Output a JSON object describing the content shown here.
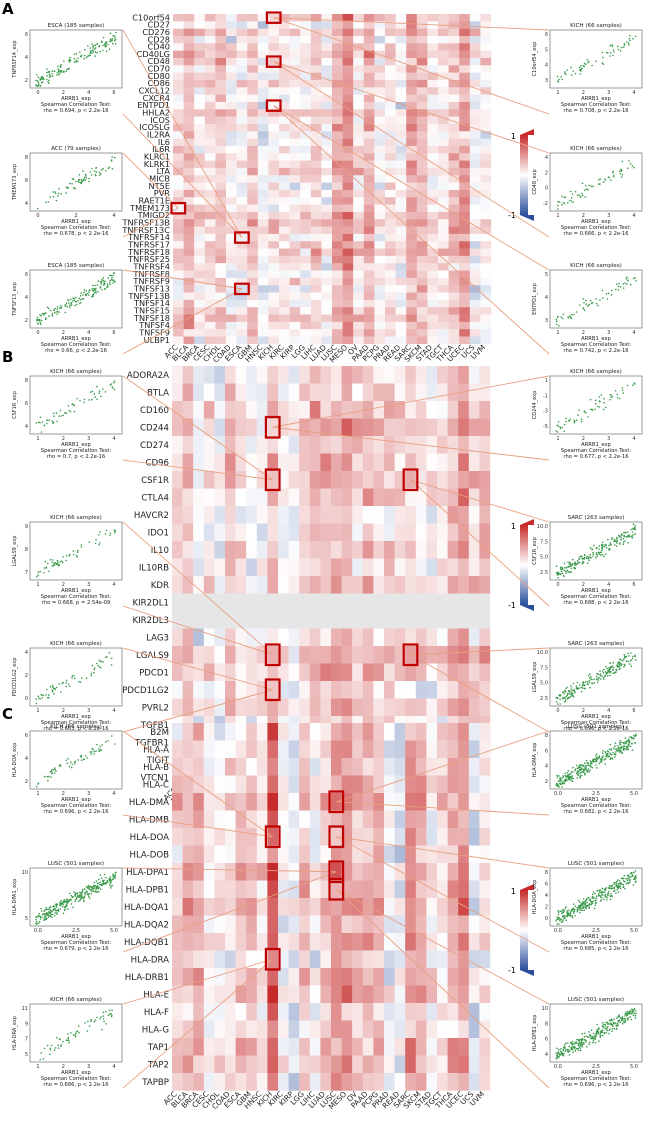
{
  "cancers": [
    "ACC",
    "BLCA",
    "BRCA",
    "CESC",
    "CHOL",
    "COAD",
    "ESCA",
    "GBM",
    "HNSC",
    "KICH",
    "KIRC",
    "KIRP",
    "LGG",
    "LIHC",
    "LUAD",
    "LUSC",
    "MESO",
    "OV",
    "PAAD",
    "PCPG",
    "PRAD",
    "READ",
    "SARC",
    "SKCM",
    "STAD",
    "TGCT",
    "THCA",
    "UCEC",
    "UCS",
    "UVM"
  ],
  "scale": {
    "max": "1",
    "min": "-1",
    "high_color": "#c62a2a",
    "low_color": "#2b4f9c",
    "mid_color": "#ffffff"
  },
  "scatter_style": {
    "dot_color": "#3a9a4a",
    "connector_color": "#e8a080",
    "highlight_color": "#c00000"
  },
  "x_label": "ARRB1_exp",
  "test_label": "Spearman Correlation Test:",
  "panels": [
    {
      "label": "A",
      "genes": [
        "C10orf54",
        "CD27",
        "CD276",
        "CD28",
        "CD40",
        "CD40LG",
        "CD48",
        "CD70",
        "CD80",
        "CD86",
        "CXCL12",
        "CXCR4",
        "ENTPD1",
        "HHLA2",
        "ICOS",
        "ICOSLG",
        "IL2RA",
        "IL6",
        "IL6R",
        "KLRC1",
        "KLRK1",
        "LTA",
        "MICB",
        "NT5E",
        "PVR",
        "RAET1E",
        "TMEM173",
        "TMIGD2",
        "TNFRSF13B",
        "TNFRSF13C",
        "TNFRSF14",
        "TNFRSF17",
        "TNFRSF18",
        "TNFRSF25",
        "TNFRSF4",
        "TNFRSF8",
        "TNFRSF9",
        "TNFSF13",
        "TNFSF13B",
        "TNFSF14",
        "TNFSF15",
        "TNFSF18",
        "TNFSF4",
        "TNFSF9",
        "ULBP1"
      ],
      "highlights": [
        {
          "gene": "C10orf54",
          "cancer": "KICH"
        },
        {
          "gene": "CD48",
          "cancer": "KICH"
        },
        {
          "gene": "ENTPD1",
          "cancer": "KICH"
        },
        {
          "gene": "TMEM173",
          "cancer": "ACC"
        },
        {
          "gene": "TNFRSF14",
          "cancer": "ESCA"
        },
        {
          "gene": "TNFSF13",
          "cancer": "ESCA"
        }
      ],
      "scatters": [
        {
          "side": "left",
          "slot": 0,
          "title": "ESCA (185 samples)",
          "ylabel": "TNFRSF14_exp",
          "stat": "rho = 0.694, p < 2.2e-16",
          "n": 150,
          "xticks": [
            "0",
            "2",
            "4",
            "6"
          ],
          "yticks": [
            "2",
            "4",
            "6"
          ]
        },
        {
          "side": "left",
          "slot": 1,
          "title": "ACC (79 samples)",
          "ylabel": "TMEM173_exp",
          "stat": "rho = 0.678, p < 2.2e-16",
          "n": 70,
          "xticks": [
            "0",
            "2",
            "4"
          ],
          "yticks": [
            "4",
            "6",
            "8"
          ]
        },
        {
          "side": "left",
          "slot": 2,
          "title": "ESCA (185 samples)",
          "ylabel": "TNFSF13_exp",
          "stat": "rho = 0.66, p < 2.2e-16",
          "n": 150,
          "xticks": [
            "0",
            "2",
            "4",
            "6"
          ],
          "yticks": [
            "2",
            "4",
            "6"
          ]
        },
        {
          "side": "right",
          "slot": 0,
          "title": "KICH (66 samples)",
          "ylabel": "C10orf54_exp",
          "stat": "rho = 0.708, p < 2.2e-16",
          "n": 60,
          "xticks": [
            "1",
            "2",
            "3",
            "4"
          ],
          "yticks": [
            "3",
            "4",
            "5",
            "6"
          ]
        },
        {
          "side": "right",
          "slot": 1,
          "title": "KICH (66 samples)",
          "ylabel": "CD48_exp",
          "stat": "rho = 0.666, p < 2.2e-16",
          "n": 60,
          "xticks": [
            "1",
            "2",
            "3",
            "4"
          ],
          "yticks": [
            "-2",
            "0",
            "2",
            "4"
          ]
        },
        {
          "side": "right",
          "slot": 2,
          "title": "KICH (66 samples)",
          "ylabel": "ENTPD1_exp",
          "stat": "rho = 0.742, p < 2.2e-16",
          "n": 60,
          "xticks": [
            "1",
            "2",
            "3",
            "4"
          ],
          "yticks": [
            "3",
            "4",
            "5"
          ]
        }
      ]
    },
    {
      "label": "B",
      "genes": [
        "ADORA2A",
        "BTLA",
        "CD160",
        "CD244",
        "CD274",
        "CD96",
        "CSF1R",
        "CTLA4",
        "HAVCR2",
        "IDO1",
        "IL10",
        "IL10RB",
        "KDR",
        "KIR2DL1",
        "KIR2DL3",
        "LAG3",
        "LGALS9",
        "PDCD1",
        "PDCD1LG2",
        "PVRL2",
        "TGFB1",
        "TGFBR1",
        "TIGIT",
        "VTCN1"
      ],
      "highlights": [
        {
          "gene": "CD244",
          "cancer": "KICH"
        },
        {
          "gene": "CSF1R",
          "cancer": "KICH"
        },
        {
          "gene": "CSF1R",
          "cancer": "SARC"
        },
        {
          "gene": "LGALS9",
          "cancer": "KICH"
        },
        {
          "gene": "LGALS9",
          "cancer": "SARC"
        },
        {
          "gene": "PDCD1LG2",
          "cancer": "KICH"
        }
      ],
      "scatters": [
        {
          "side": "left",
          "slot": 0,
          "title": "KICH (66 samples)",
          "ylabel": "CSF1R_exp",
          "stat": "rho = 0.7, p < 2.2e-16",
          "n": 60,
          "xticks": [
            "1",
            "2",
            "3",
            "4"
          ],
          "yticks": [
            "4",
            "6",
            "8"
          ]
        },
        {
          "side": "left",
          "slot": 1,
          "title": "KICH (66 samples)",
          "ylabel": "LGALS9_exp",
          "stat": "rho = 0.668, p = 2.54e-09",
          "n": 60,
          "xticks": [
            "1",
            "2",
            "3",
            "4"
          ],
          "yticks": [
            "7",
            "8",
            "9"
          ]
        },
        {
          "side": "left",
          "slot": 2,
          "title": "KICH (66 samples)",
          "ylabel": "PDCD1LG2_exp",
          "stat": "rho = 0.683, p < 2.2e-16",
          "n": 60,
          "xticks": [
            "1",
            "2",
            "3",
            "4"
          ],
          "yticks": [
            "0",
            "2",
            "4"
          ]
        },
        {
          "side": "right",
          "slot": 0,
          "title": "KICH (66 samples)",
          "ylabel": "CD244_exp",
          "stat": "rho = 0.677, p < 2.2e-16",
          "n": 60,
          "xticks": [
            "1",
            "2",
            "3",
            "4"
          ],
          "yticks": [
            "-5",
            "-3",
            "-1",
            "1"
          ]
        },
        {
          "side": "right",
          "slot": 1,
          "title": "SARC (263 samples)",
          "ylabel": "CSF1R_exp",
          "stat": "rho = 0.688, p < 2.2e-16",
          "n": 200,
          "xticks": [
            "0",
            "2",
            "4",
            "6"
          ],
          "yticks": [
            "2.5",
            "5.0",
            "7.5",
            "10.0"
          ]
        },
        {
          "side": "right",
          "slot": 2,
          "title": "SARC (263 samples)",
          "ylabel": "LGALS9_exp",
          "stat": "rho = 0.696, p < 2.2e-16",
          "n": 200,
          "xticks": [
            "0",
            "2",
            "4",
            "6"
          ],
          "yticks": [
            "2.5",
            "5.0",
            "7.5",
            "10.0"
          ]
        }
      ]
    },
    {
      "label": "C",
      "genes": [
        "B2M",
        "HLA-A",
        "HLA-B",
        "HLA-C",
        "HLA-DMA",
        "HLA-DMB",
        "HLA-DOA",
        "HLA-DOB",
        "HLA-DPA1",
        "HLA-DPB1",
        "HLA-DQA1",
        "HLA-DQA2",
        "HLA-DQB1",
        "HLA-DRA",
        "HLA-DRB1",
        "HLA-E",
        "HLA-F",
        "HLA-G",
        "TAP1",
        "TAP2",
        "TAPBP"
      ],
      "highlights": [
        {
          "gene": "HLA-DOA",
          "cancer": "KICH"
        },
        {
          "gene": "HLA-DRA",
          "cancer": "KICH"
        },
        {
          "gene": "HLA-DMA",
          "cancer": "LUSC"
        },
        {
          "gene": "HLA-DOA",
          "cancer": "LUSC"
        },
        {
          "gene": "HLA-DPA1",
          "cancer": "LUSC"
        },
        {
          "gene": "HLA-DPB1",
          "cancer": "LUSC"
        }
      ],
      "scatters": [
        {
          "side": "left",
          "slot": 0,
          "title": "KICH (66 samples)",
          "ylabel": "HLA-DOA_exp",
          "stat": "rho = 0.696, p < 2.2e-16",
          "n": 60,
          "xticks": [
            "1",
            "2",
            "3",
            "4"
          ],
          "yticks": [
            "2",
            "4",
            "6"
          ]
        },
        {
          "side": "left",
          "slot": 1,
          "title": "LUSC (501 samples)",
          "ylabel": "HLA-DPA1_exp",
          "stat": "rho = 0.679, p < 2.2e-16",
          "n": 300,
          "xticks": [
            "0.0",
            "2.5",
            "5.0"
          ],
          "yticks": [
            "5",
            "10"
          ]
        },
        {
          "side": "left",
          "slot": 2,
          "title": "KICH (66 samples)",
          "ylabel": "HLA-DRA_exp",
          "stat": "rho = 0.686, p < 2.2e-16",
          "n": 60,
          "xticks": [
            "1",
            "2",
            "3",
            "4"
          ],
          "yticks": [
            "5",
            "7",
            "9",
            "11"
          ]
        },
        {
          "side": "right",
          "slot": 0,
          "title": "LUSC (501 samples)",
          "ylabel": "HLA-DMA_exp",
          "stat": "rho = 0.682, p < 2.2e-16",
          "n": 300,
          "xticks": [
            "0.0",
            "2.5",
            "5.0"
          ],
          "yticks": [
            "2",
            "4",
            "6",
            "8"
          ]
        },
        {
          "side": "right",
          "slot": 1,
          "title": "LUSC (501 samples)",
          "ylabel": "HLA-DOA_exp",
          "stat": "rho = 0.685, p < 2.2e-16",
          "n": 300,
          "xticks": [
            "0.0",
            "2.5",
            "5.0"
          ],
          "yticks": [
            "0",
            "2",
            "4",
            "6",
            "8"
          ]
        },
        {
          "side": "right",
          "slot": 2,
          "title": "LUSC (501 samples)",
          "ylabel": "HLA-DPB1_exp",
          "stat": "rho = 0.696, p < 2.2e-16",
          "n": 300,
          "xticks": [
            "0.0",
            "2.5",
            "5.0"
          ],
          "yticks": [
            "4",
            "6",
            "8",
            "10"
          ]
        }
      ]
    }
  ]
}
